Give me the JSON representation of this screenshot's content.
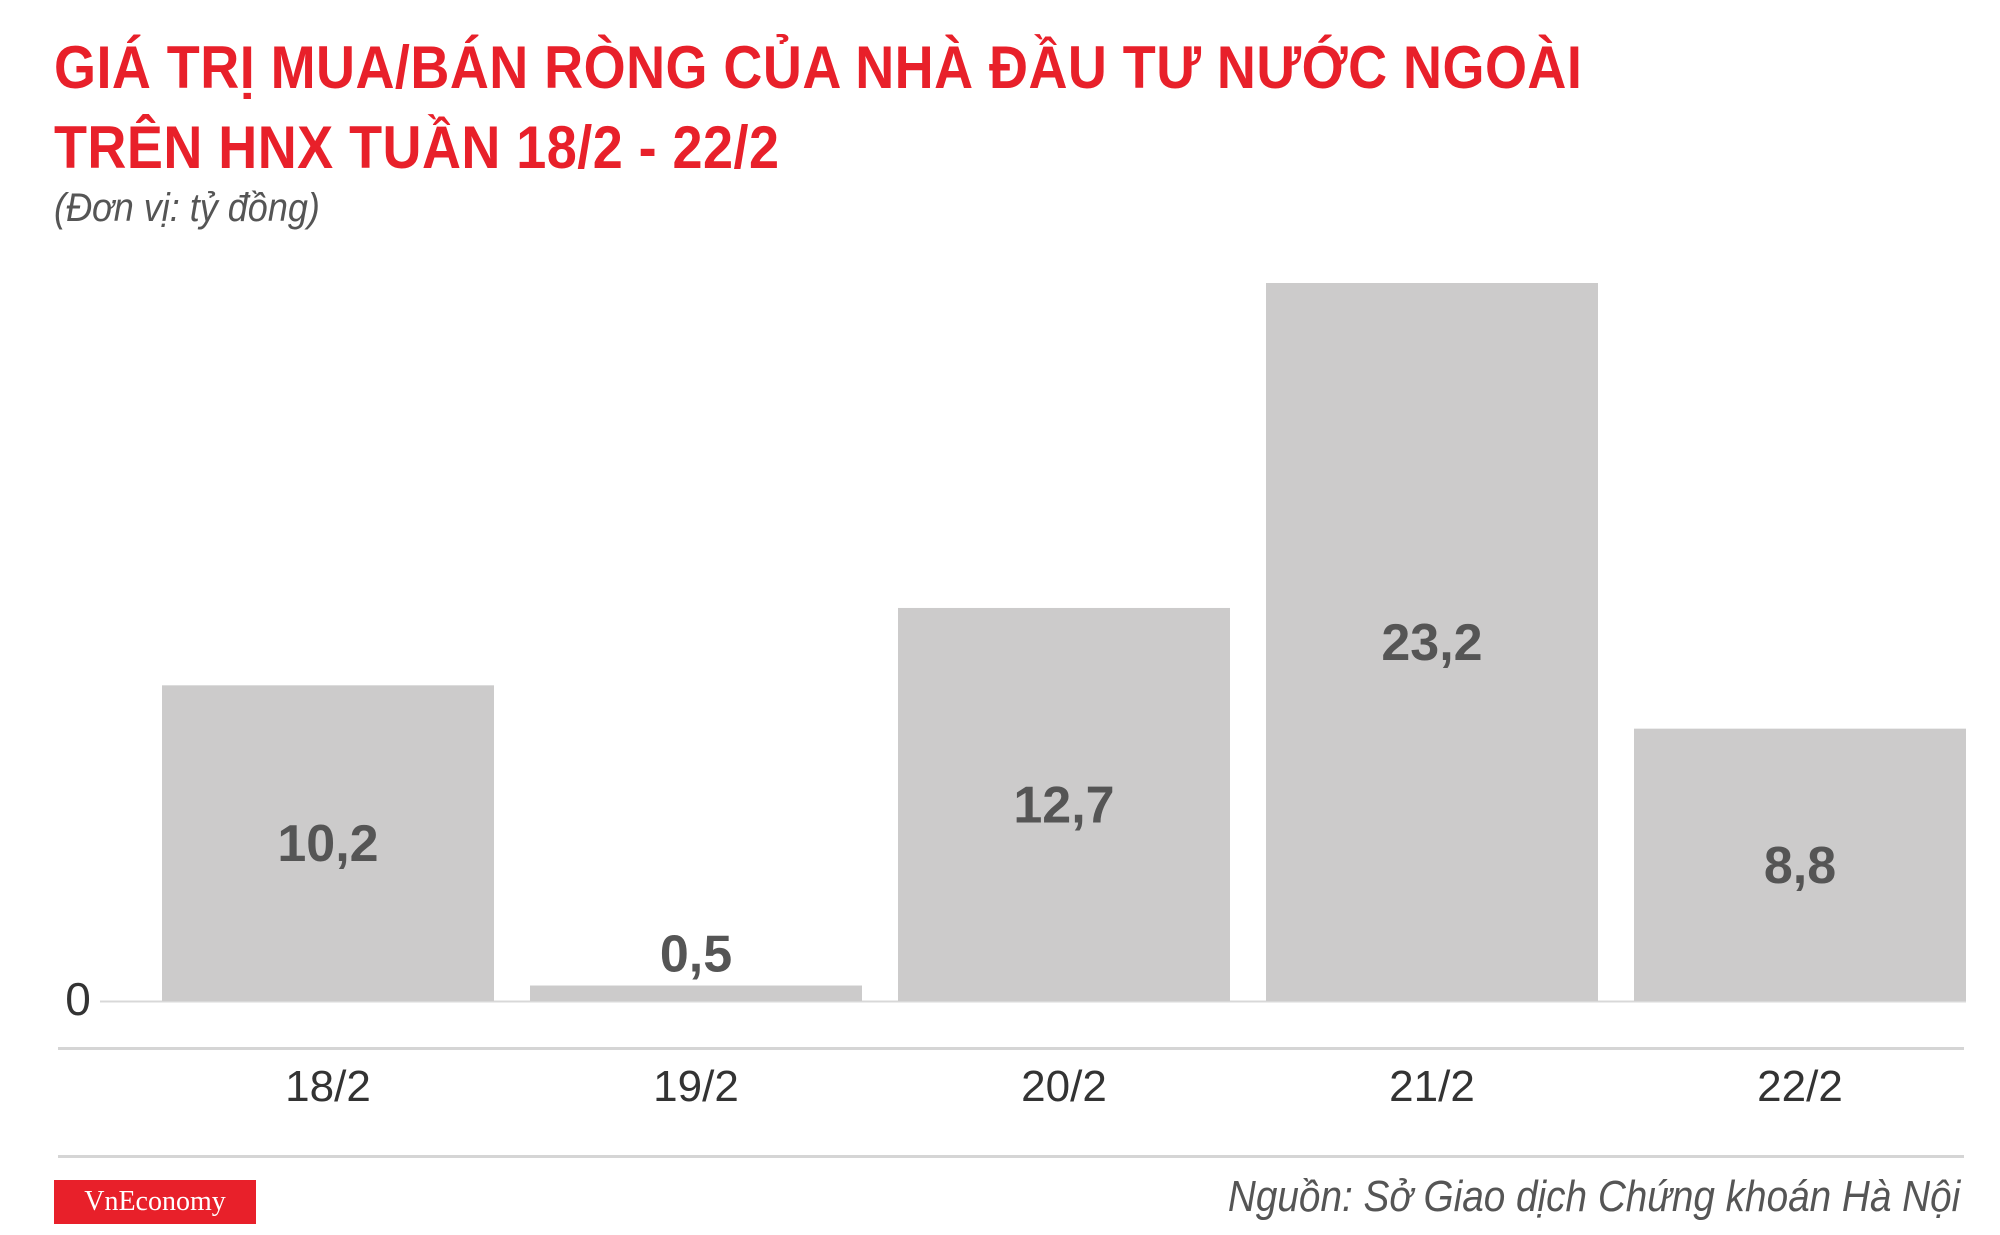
{
  "header": {
    "title_line1": "GIÁ TRỊ MUA/BÁN RÒNG CỦA NHÀ ĐẦU TƯ NƯỚC NGOÀI",
    "title_line2": "TRÊN HNX TUẦN 18/2 - 22/2",
    "unit": "(Đơn vị: tỷ đồng)"
  },
  "footer": {
    "logo_text": "VnEconomy",
    "source": "Nguồn: Sở Giao dịch Chứng khoán Hà Nội"
  },
  "colors": {
    "title": "#e8202a",
    "bar": "#cccbcb",
    "value_label": "#555555",
    "logo_bg": "#e8202a"
  },
  "chart_data": {
    "type": "bar",
    "title": "GIÁ TRỊ MUA/BÁN RÒNG CỦA NHÀ ĐẦU TƯ NƯỚC NGOÀI TRÊN HNX TUẦN 18/2 - 22/2",
    "categories": [
      "18/2",
      "19/2",
      "20/2",
      "21/2",
      "22/2"
    ],
    "values": [
      10.2,
      0.5,
      12.7,
      23.2,
      8.8
    ],
    "value_labels": [
      "10,2",
      "0,5",
      "12,7",
      "23,2",
      "8,8"
    ],
    "xlabel": "",
    "ylabel": "",
    "ylim": [
      0,
      23.2
    ],
    "y_ticks": [
      "0"
    ],
    "grid": false,
    "legend": "none"
  }
}
